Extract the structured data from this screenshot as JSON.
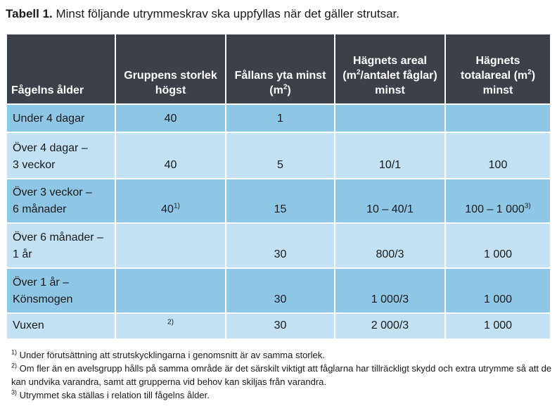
{
  "caption": {
    "label": "Tabell 1.",
    "text": " Minst följande utrymmeskrav ska uppfyllas när det gäller strutsar."
  },
  "table": {
    "headers": {
      "age": "Fågelns ålder",
      "group_size": "Gruppens storlek högst",
      "pen_area_pre": "Fållans yta minst (m",
      "pen_area_sup": "2",
      "pen_area_post": ")",
      "enclosure_per_bird_pre": "Hägnets areal (m",
      "enclosure_per_bird_sup": "2",
      "enclosure_per_bird_post": "/antalet fåglar) minst",
      "enclosure_total_pre": "Hägnets totalareal (m",
      "enclosure_total_sup": "2",
      "enclosure_total_post": ") minst"
    },
    "rows": [
      {
        "age_line1": "Under 4 dagar",
        "age_line2": "",
        "group": "40",
        "group_sup": "",
        "pen": "1",
        "per_bird": "",
        "total": "",
        "total_sup": ""
      },
      {
        "age_line1": "Över 4 dagar –",
        "age_line2": "3 veckor",
        "group": "40",
        "group_sup": "",
        "pen": "5",
        "per_bird": "10/1",
        "total": "100",
        "total_sup": ""
      },
      {
        "age_line1": "Över 3 veckor –",
        "age_line2": "6 månader",
        "group": "40",
        "group_sup": "1)",
        "pen": "15",
        "per_bird": "10 – 40/1",
        "total": "100 – 1 000",
        "total_sup": "3)"
      },
      {
        "age_line1": "Över 6 månader –",
        "age_line2": "1 år",
        "group": "",
        "group_sup": "",
        "pen": "30",
        "per_bird": "800/3",
        "total": "1 000",
        "total_sup": ""
      },
      {
        "age_line1": "Över 1 år –",
        "age_line2": "Könsmogen",
        "group": "",
        "group_sup": "",
        "pen": "30",
        "per_bird": "1 000/3",
        "total": "1 000",
        "total_sup": ""
      },
      {
        "age_line1": "Vuxen",
        "age_line2": "",
        "group": "",
        "group_sup": "2)",
        "pen": "30",
        "per_bird": "2 000/3",
        "total": "1 000",
        "total_sup": ""
      }
    ]
  },
  "footnotes": [
    {
      "mark": "1)",
      "text": " Under förutsättning att strutskycklingarna i genomsnitt är av samma storlek."
    },
    {
      "mark": "2)",
      "text": " Om fler än en avelsgrupp hålls på samma område är det särskilt viktigt att fåglarna har tillräckligt skydd och extra utrymme så att de kan undvika varandra, samt att grupperna vid behov kan skiljas från varandra."
    },
    {
      "mark": "3)",
      "text": " Utrymmet ska ställas i relation till fågelns ålder."
    }
  ],
  "colors": {
    "header_bg": "#3b4049",
    "row_dark": "#8ec6e6",
    "row_light": "#c3e1f3"
  }
}
